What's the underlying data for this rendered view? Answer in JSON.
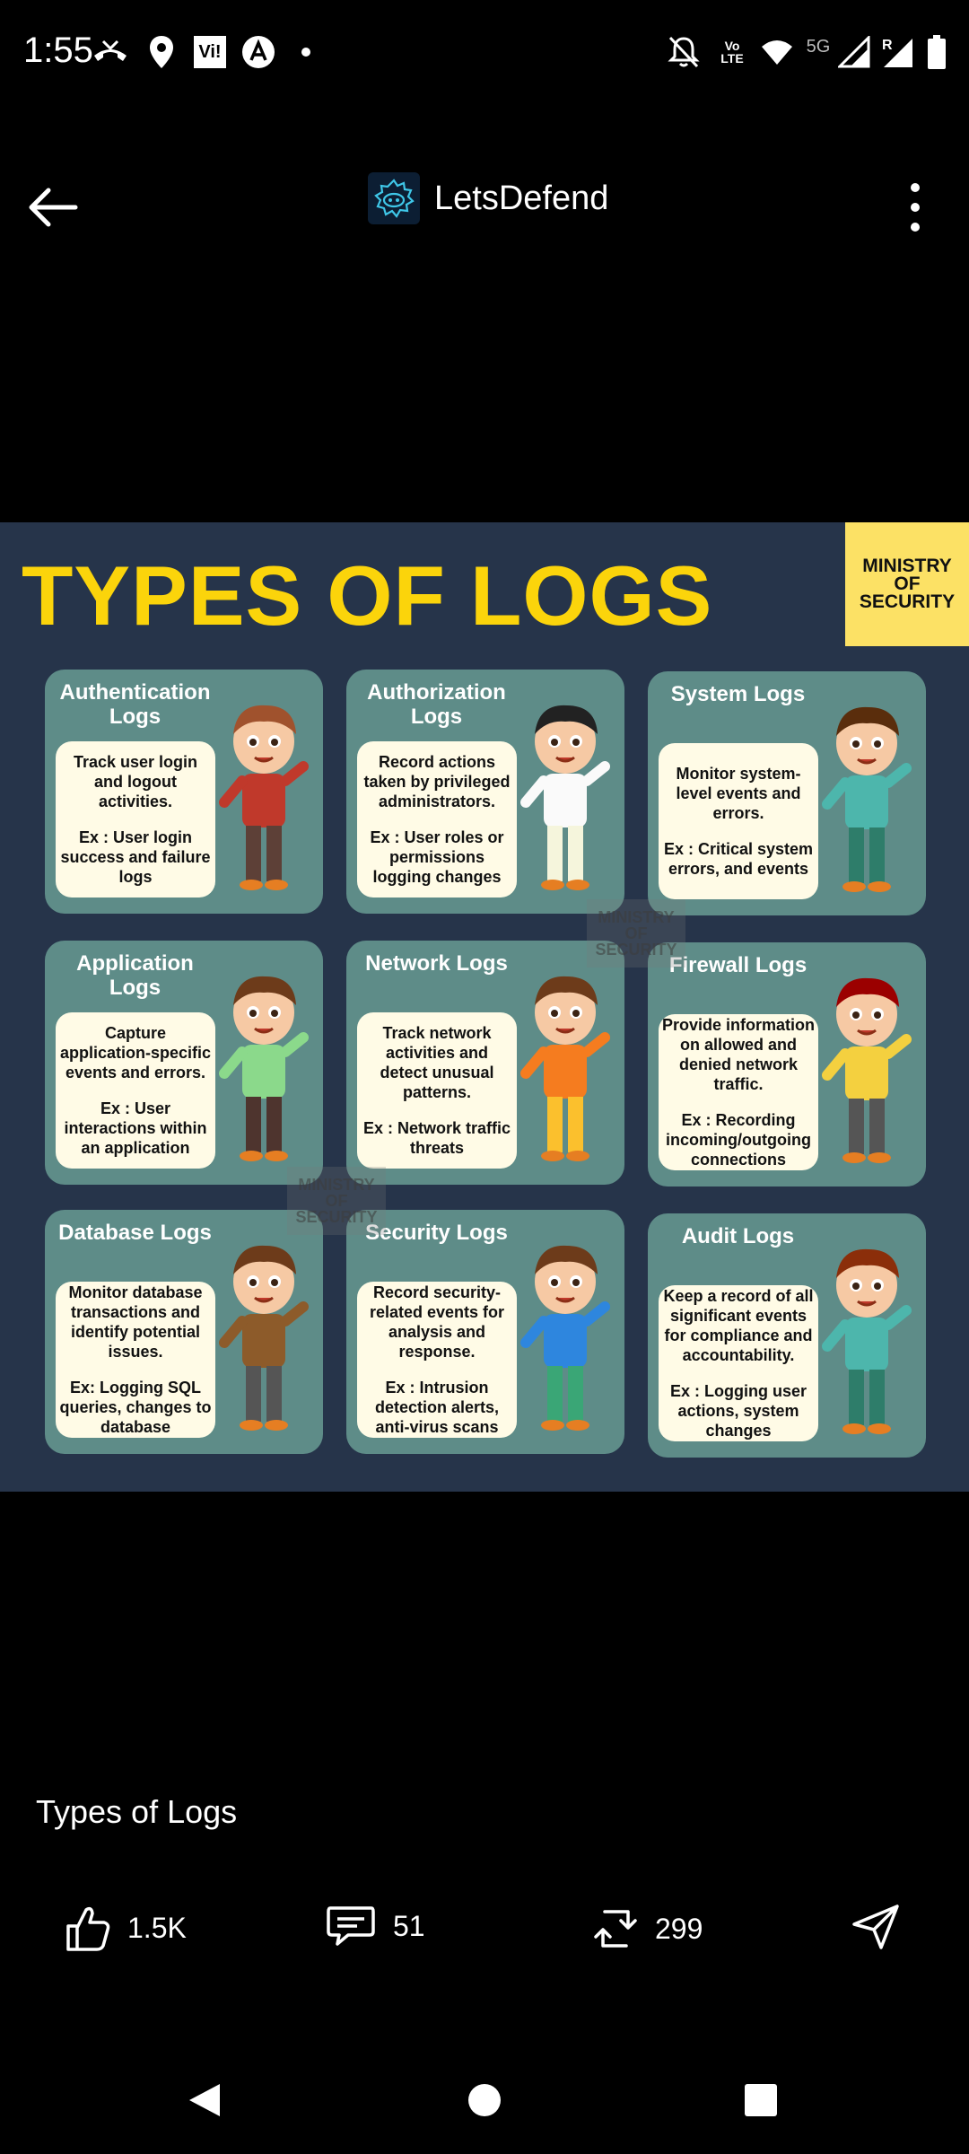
{
  "status_bar": {
    "time": "1:55",
    "left_icons": [
      "missed-call-icon",
      "maps-pin-icon",
      "vi-app-icon",
      "arc-app-icon",
      "dot-icon"
    ],
    "vi_label": "Vi!",
    "volte_label_top": "Vo",
    "volte_label_bottom": "LTE",
    "network_label": "5G",
    "roaming_label": "R",
    "right_icons": [
      "mute-icon",
      "volte-icon",
      "wifi-icon",
      "signal-icon",
      "signal-roaming-icon",
      "battery-icon"
    ]
  },
  "header": {
    "brand_name": "LetsDefend",
    "back_icon": "back-arrow-icon",
    "menu_icon": "kebab-menu-icon"
  },
  "infographic": {
    "title": "TYPES OF LOGS",
    "badge": [
      "MINISTRY",
      "OF",
      "SECURITY"
    ],
    "watermark": [
      "MINISTRY",
      "OF",
      "SECURITY"
    ],
    "cards": [
      {
        "title": "Authentication Logs",
        "desc": "Track user login and logout activities.",
        "example": "Ex : User login success and failure logs"
      },
      {
        "title": "Authorization Logs",
        "desc": "Record actions taken by privileged administrators.",
        "example": "Ex : User roles or permissions logging changes"
      },
      {
        "title": "System Logs",
        "desc": "Monitor system-level events and errors.",
        "example": "Ex : Critical system errors, and events"
      },
      {
        "title": "Application Logs",
        "desc": "Capture application-specific events and errors.",
        "example": "Ex : User interactions within an application"
      },
      {
        "title": "Network Logs",
        "desc": "Track network activities and detect unusual patterns.",
        "example": "Ex : Network traffic threats"
      },
      {
        "title": "Firewall Logs",
        "desc": "Provide information on allowed and denied network traffic.",
        "example": "Ex : Recording incoming/outgoing connections"
      },
      {
        "title": "Database Logs",
        "desc": "Monitor database transactions and identify potential issues.",
        "example": "Ex: Logging SQL queries, changes to database"
      },
      {
        "title": "Security Logs",
        "desc": "Record security-related events for analysis and response.",
        "example": "Ex : Intrusion detection alerts, anti-virus scans"
      },
      {
        "title": "Audit Logs",
        "desc": "Keep a record of all significant events for compliance and accountability.",
        "example": "Ex : Logging user actions, system changes"
      }
    ]
  },
  "post": {
    "caption": "Types of Logs",
    "likes": "1.5K",
    "comments": "51",
    "reposts": "299",
    "colors": {
      "title_yellow": "#fbd40b",
      "card_teal": "#5e8c88",
      "image_bg": "#26344a",
      "badge_yellow": "#fce165"
    }
  },
  "nav": {
    "back": "nav-back-icon",
    "home": "nav-home-icon",
    "recents": "nav-recents-icon"
  }
}
